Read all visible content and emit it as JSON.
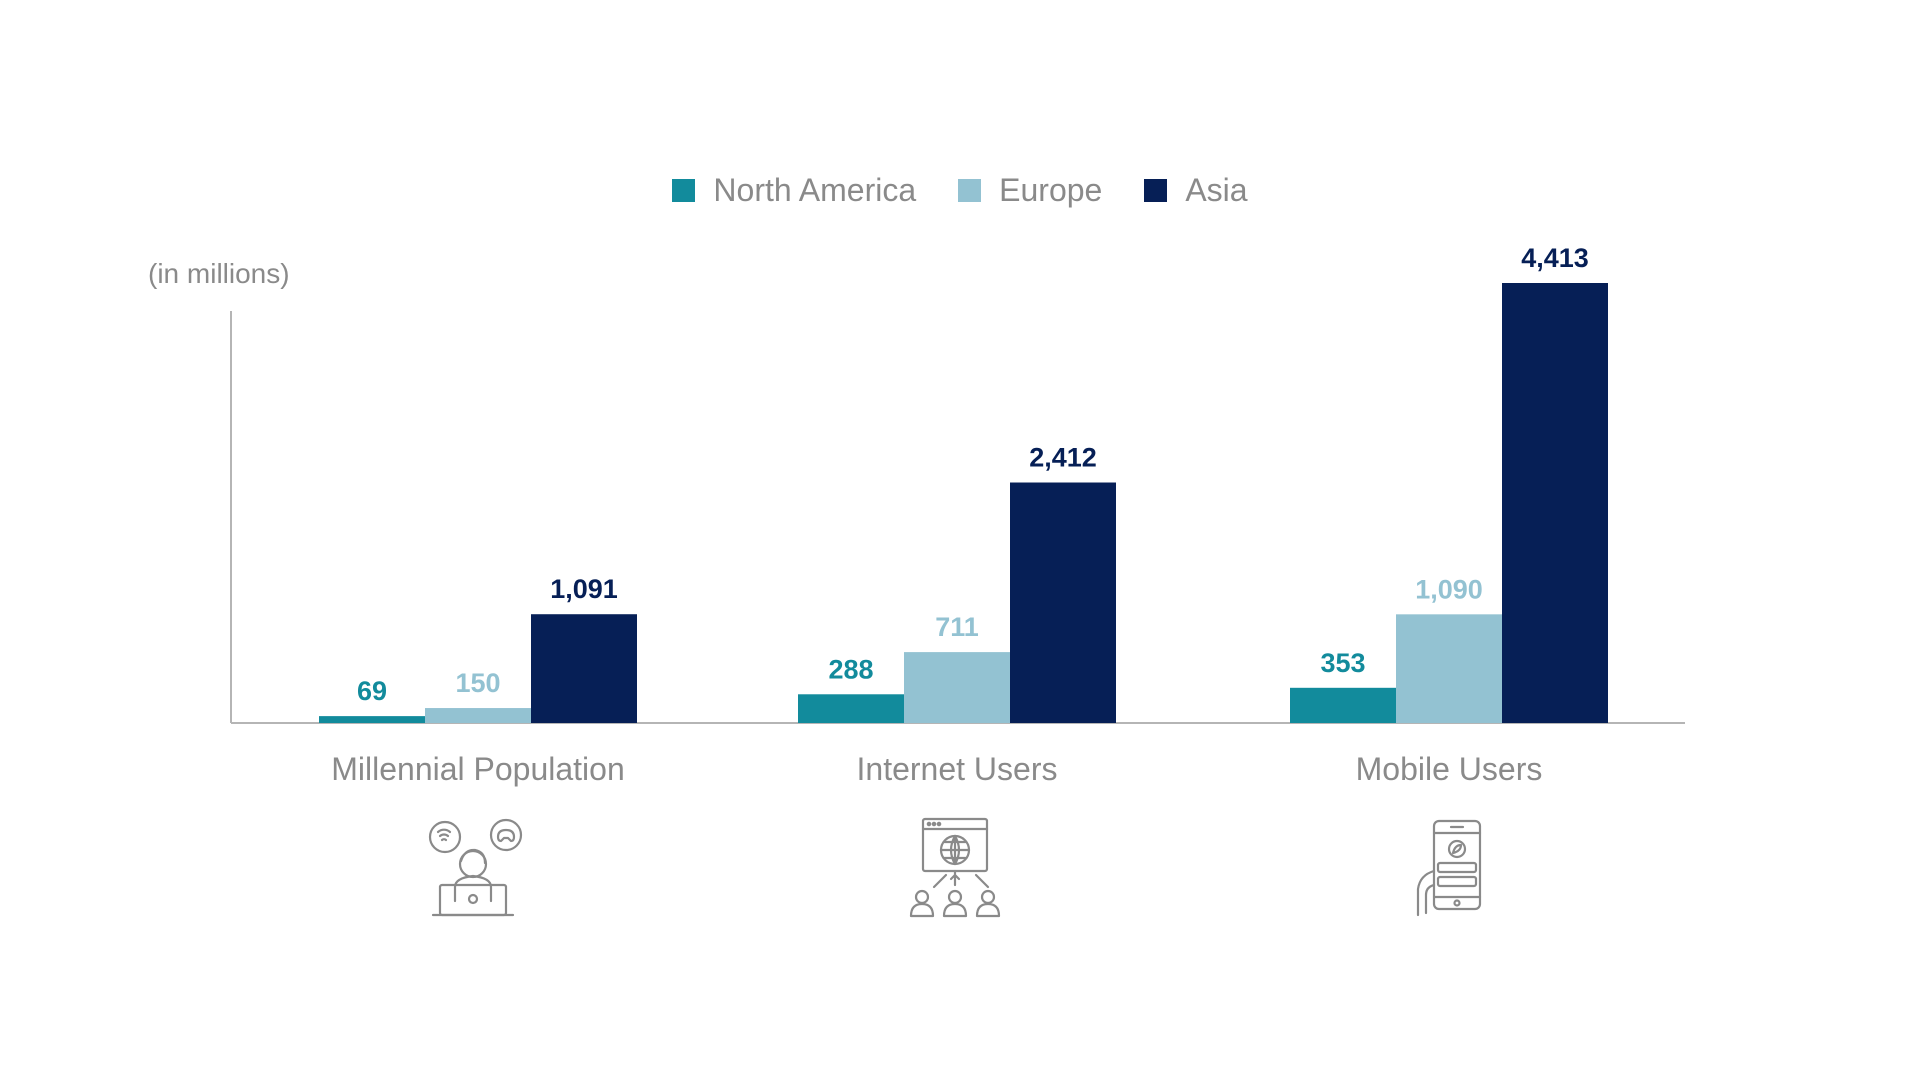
{
  "unit_label": "(in millions)",
  "colors": {
    "north_america": "#128b9c",
    "europe": "#93c2d2",
    "asia": "#061f56",
    "axis": "#b5b5b5",
    "text": "#8a8a8a",
    "icon": "#8a8a8a"
  },
  "icons": [
    "person-with-laptop-and-entertainment-icon",
    "globe-network-users-icon",
    "hand-holding-smartphone-icon"
  ],
  "chart_data": {
    "type": "bar",
    "categories": [
      "Millennial Population",
      "Internet Users",
      "Mobile Users"
    ],
    "series": [
      {
        "name": "North America",
        "values": [
          69,
          288,
          353
        ],
        "labels": [
          "69",
          "288",
          "353"
        ],
        "color": "#128b9c"
      },
      {
        "name": "Europe",
        "values": [
          150,
          711,
          1090
        ],
        "labels": [
          "150",
          "711",
          "1,090"
        ],
        "color": "#93c2d2"
      },
      {
        "name": "Asia",
        "values": [
          1091,
          2412,
          4413
        ],
        "labels": [
          "1,091",
          "2,412",
          "4,413"
        ],
        "color": "#061f56"
      }
    ],
    "title": "",
    "xlabel": "",
    "ylabel": "(in millions)",
    "ylim": [
      0,
      4413
    ],
    "grid": false,
    "legend": "top-center"
  }
}
